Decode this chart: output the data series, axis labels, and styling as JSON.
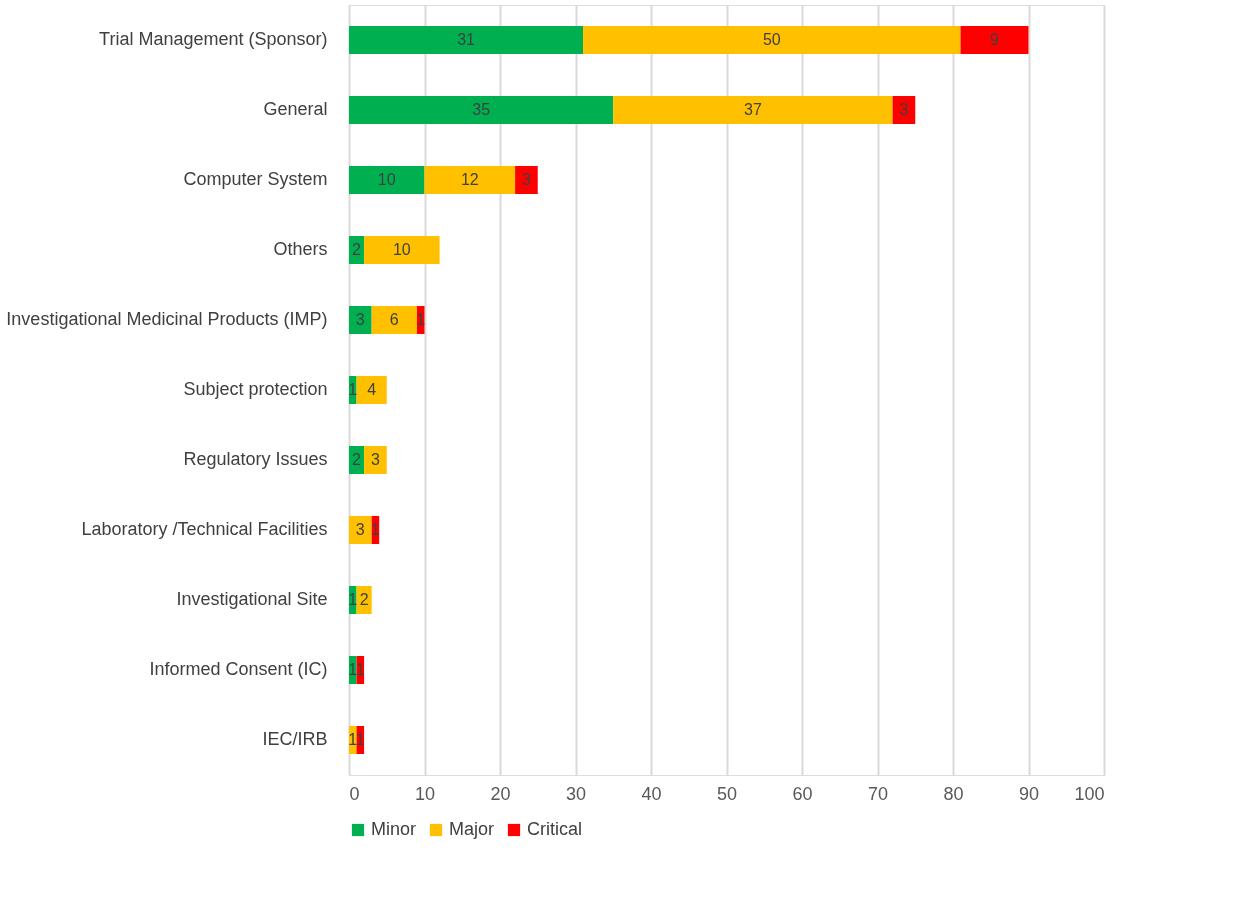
{
  "chart_data": {
    "type": "bar",
    "orientation": "horizontal",
    "stacked": true,
    "data_labels": true,
    "grid": "x",
    "legend": "bottom",
    "categories": [
      "Trial Management (Sponsor)",
      "General",
      "Computer System",
      "Others",
      "Investigational Medicinal Products (IMP)",
      "Subject protection",
      "Regulatory Issues",
      "Laboratory /Technical Facilities",
      "Investigational Site",
      "Informed Consent (IC)",
      "IEC/IRB"
    ],
    "series": [
      {
        "name": "Minor",
        "color": "#00b050",
        "values": [
          31,
          35,
          10,
          2,
          3,
          1,
          2,
          null,
          1,
          1,
          null
        ]
      },
      {
        "name": "Major",
        "color": "#ffc000",
        "values": [
          50,
          37,
          12,
          10,
          6,
          4,
          3,
          3,
          2,
          null,
          1
        ]
      },
      {
        "name": "Critical",
        "color": "#ff0000",
        "values": [
          9,
          3,
          3,
          null,
          1,
          null,
          null,
          1,
          null,
          1,
          1
        ]
      }
    ],
    "xlim": [
      0,
      100
    ],
    "xticks": [
      0,
      10,
      20,
      30,
      40,
      50,
      60,
      70,
      80,
      90,
      100
    ]
  }
}
